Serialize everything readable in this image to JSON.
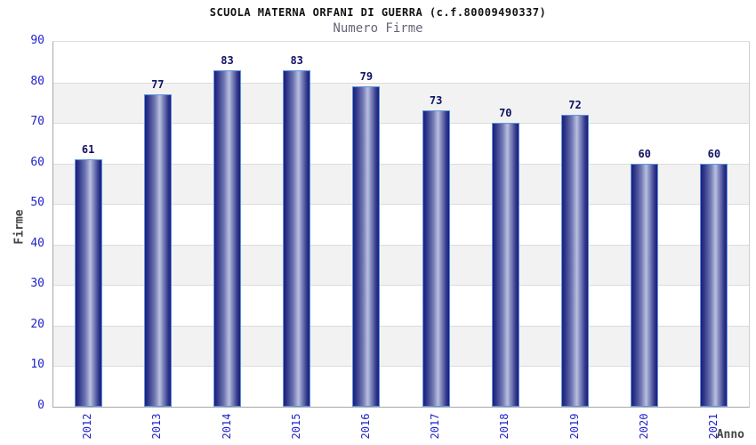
{
  "chart_data": {
    "type": "bar",
    "title": "SCUOLA MATERNA ORFANI DI GUERRA (c.f.80009490337)",
    "subtitle": "Numero Firme",
    "xlabel": "Anno",
    "ylabel": "Firme",
    "categories": [
      "2012",
      "2013",
      "2014",
      "2015",
      "2016",
      "2017",
      "2018",
      "2019",
      "2020",
      "2021"
    ],
    "values": [
      61,
      77,
      83,
      83,
      79,
      73,
      70,
      72,
      60,
      60
    ],
    "ylim": [
      0,
      90
    ],
    "yticks": [
      0,
      10,
      20,
      30,
      40,
      50,
      60,
      70,
      80,
      90
    ],
    "band_ranges": [
      [
        10,
        20
      ],
      [
        30,
        40
      ],
      [
        50,
        60
      ],
      [
        70,
        80
      ]
    ],
    "grid": "horizontal",
    "legend": "none",
    "value_labels": "above bars",
    "x_tick_rotation": -90
  },
  "colors": {
    "title": "#111111",
    "subtitle": "#666677",
    "tick_label": "#2222cc",
    "value_label": "#111166",
    "axis_title": "#444444",
    "band": "#f2f2f2",
    "grid": "#dcdcdc",
    "bar_dark": "#1e1e78",
    "bar_mid": "#7078b2",
    "bar_light": "#bac0e0",
    "bar_border": "#5b95e0"
  }
}
